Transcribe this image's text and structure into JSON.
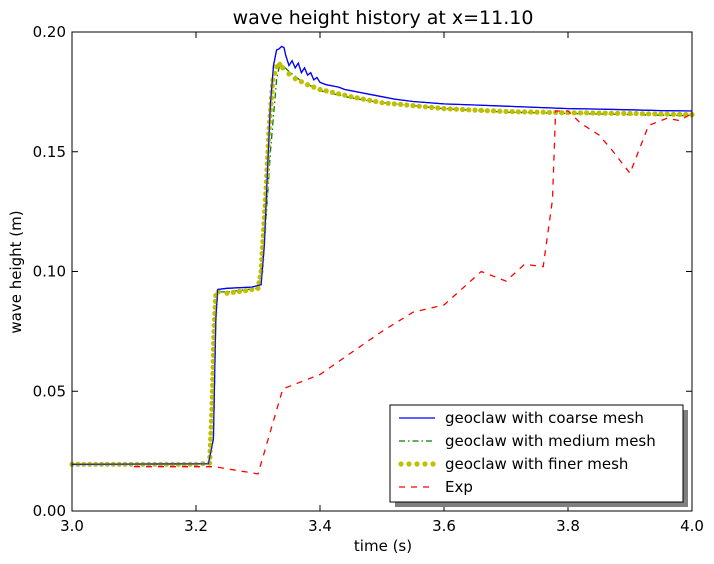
{
  "chart_data": {
    "type": "line",
    "title": "wave height history at x=11.10",
    "xlabel": "time (s)",
    "ylabel": "wave height (m)",
    "xlim": [
      3.0,
      4.0
    ],
    "ylim": [
      0.0,
      0.2
    ],
    "xticks": [
      "3.0",
      "3.2",
      "3.4",
      "3.6",
      "3.8",
      "4.0"
    ],
    "yticks": [
      "0.00",
      "0.05",
      "0.10",
      "0.15",
      "0.20"
    ],
    "grid": false,
    "legend_position": "lower right",
    "series": [
      {
        "name": "geoclaw with coarse mesh",
        "style": "solid",
        "color": "#0000ff",
        "x": [
          3.0,
          3.22,
          3.228,
          3.232,
          3.235,
          3.25,
          3.29,
          3.305,
          3.31,
          3.315,
          3.32,
          3.325,
          3.33,
          3.334,
          3.338,
          3.342,
          3.345,
          3.35,
          3.355,
          3.36,
          3.365,
          3.37,
          3.375,
          3.38,
          3.385,
          3.39,
          3.395,
          3.4,
          3.41,
          3.42,
          3.43,
          3.44,
          3.45,
          3.46,
          3.47,
          3.48,
          3.5,
          3.52,
          3.55,
          3.6,
          3.65,
          3.7,
          3.75,
          3.8,
          3.85,
          3.9,
          3.95,
          4.0
        ],
        "y": [
          0.0195,
          0.0197,
          0.03,
          0.08,
          0.0925,
          0.093,
          0.0935,
          0.0945,
          0.11,
          0.14,
          0.17,
          0.186,
          0.1925,
          0.193,
          0.194,
          0.1935,
          0.19,
          0.186,
          0.188,
          0.185,
          0.187,
          0.183,
          0.185,
          0.182,
          0.183,
          0.18,
          0.181,
          0.179,
          0.178,
          0.1775,
          0.177,
          0.176,
          0.1755,
          0.175,
          0.1745,
          0.174,
          0.173,
          0.172,
          0.171,
          0.17,
          0.1695,
          0.169,
          0.1685,
          0.168,
          0.1678,
          0.1675,
          0.1672,
          0.167
        ]
      },
      {
        "name": "geoclaw with medium mesh",
        "style": "dashdot",
        "color": "#008000",
        "x": [
          3.0,
          3.22,
          3.228,
          3.232,
          3.235,
          3.25,
          3.3,
          3.31,
          3.32,
          3.33,
          3.335,
          3.34,
          3.35,
          3.37,
          3.4,
          3.45,
          3.5,
          3.6,
          3.7,
          3.8,
          3.9,
          4.0
        ],
        "y": [
          0.0195,
          0.0197,
          0.03,
          0.08,
          0.0915,
          0.0915,
          0.093,
          0.11,
          0.15,
          0.18,
          0.1865,
          0.186,
          0.1835,
          0.1795,
          0.1755,
          0.1725,
          0.1705,
          0.168,
          0.1665,
          0.166,
          0.1655,
          0.165
        ]
      },
      {
        "name": "geoclaw with finer mesh",
        "style": "dots",
        "color": "#bfbf00",
        "x": [
          3.0,
          3.2,
          3.222,
          3.226,
          3.229,
          3.232,
          3.236,
          3.25,
          3.28,
          3.3,
          3.305,
          3.312,
          3.318,
          3.324,
          3.33,
          3.335,
          3.34,
          3.35,
          3.36,
          3.38,
          3.4,
          3.45,
          3.5,
          3.6,
          3.7,
          3.8,
          3.9,
          4.0
        ],
        "y": [
          0.0195,
          0.0195,
          0.02,
          0.045,
          0.075,
          0.09,
          0.0915,
          0.091,
          0.092,
          0.093,
          0.1,
          0.13,
          0.16,
          0.18,
          0.1855,
          0.1865,
          0.185,
          0.1825,
          0.1805,
          0.178,
          0.176,
          0.173,
          0.1705,
          0.168,
          0.1668,
          0.1663,
          0.166,
          0.1655
        ]
      },
      {
        "name": "Exp",
        "style": "dashed",
        "color": "#ff0000",
        "x": [
          3.1,
          3.23,
          3.3,
          3.34,
          3.37,
          3.4,
          3.45,
          3.5,
          3.55,
          3.6,
          3.63,
          3.66,
          3.7,
          3.73,
          3.76,
          3.775,
          3.78,
          3.8,
          3.82,
          3.85,
          3.87,
          3.9,
          3.93,
          3.96,
          3.98,
          4.0
        ],
        "y": [
          0.0185,
          0.0185,
          0.0155,
          0.051,
          0.054,
          0.057,
          0.066,
          0.075,
          0.083,
          0.086,
          0.093,
          0.1,
          0.096,
          0.103,
          0.102,
          0.13,
          0.167,
          0.167,
          0.162,
          0.157,
          0.151,
          0.141,
          0.161,
          0.164,
          0.163,
          0.166
        ]
      }
    ]
  }
}
